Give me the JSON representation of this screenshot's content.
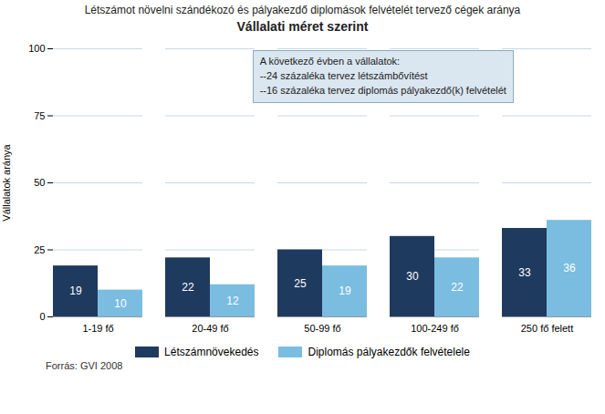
{
  "chart_data": {
    "type": "bar",
    "title": "Létszámot növelni szándékozó és pályakezdő diplomások felvételét tervező cégek aránya",
    "subtitle": "Vállalati méret szerint",
    "categories": [
      "1-19 fő",
      "20-49 fő",
      "50-99 fő",
      "100-249 fő",
      "250 fő felett"
    ],
    "series": [
      {
        "name": "Létszámnövekedés",
        "color": "#1F3A5F",
        "values": [
          19,
          22,
          25,
          30,
          33
        ]
      },
      {
        "name": "Diplomás pályakezdők felvételele",
        "color": "#7ABDE0",
        "values": [
          10,
          12,
          19,
          22,
          36
        ]
      }
    ],
    "ylabel": "Vállalatok aránya",
    "ylim": [
      0,
      100
    ],
    "yticks": [
      0,
      25,
      50,
      75,
      100
    ],
    "grid": true,
    "data_labels": true,
    "legend": "bottom",
    "annotations": [
      "A következő évben a vállalatok:\n--24 százaléka tervez létszámbővítést\n--16 százaléka tervez diplomás pályakezdő(k) felvételét"
    ],
    "source": "Forrás: GVI 2008"
  }
}
